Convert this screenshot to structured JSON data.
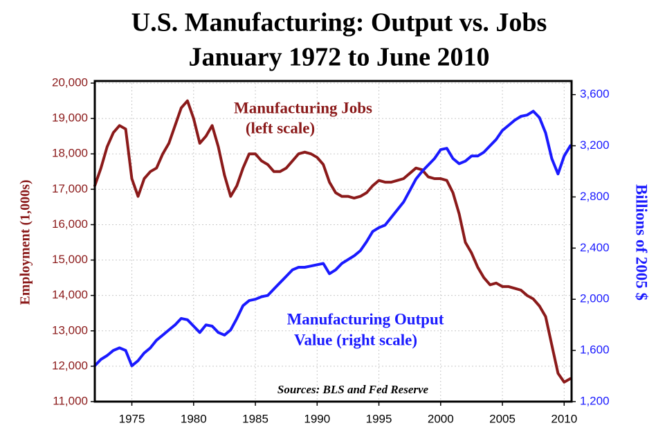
{
  "chart_data": {
    "type": "line",
    "title": "U.S. Manufacturing: Output vs. Jobs",
    "subtitle": "January 1972 to June 2010",
    "y_label": "Employment (1,000s)",
    "y2_label": "Billions of 2005 $",
    "annotations": [
      "Manufacturing Jobs",
      "(left scale)",
      "Manufacturing Output",
      "Value (right scale)",
      "Sources: BLS and Fed Reserve"
    ],
    "grid": true,
    "xlim": [
      1972,
      2010.6
    ],
    "xticks": [
      1975,
      1980,
      1985,
      1990,
      1995,
      2000,
      2005,
      2010
    ],
    "ylim": [
      11000,
      20000
    ],
    "yticks": [
      {
        "value": 11000,
        "label": "11,000"
      },
      {
        "value": 12000,
        "label": "12,000"
      },
      {
        "value": 13000,
        "label": "13,000"
      },
      {
        "value": 14000,
        "label": "14,000"
      },
      {
        "value": 15000,
        "label": "15,000"
      },
      {
        "value": 16000,
        "label": "16,000"
      },
      {
        "value": 17000,
        "label": "17,000"
      },
      {
        "value": 18000,
        "label": "18,000"
      },
      {
        "value": 19000,
        "label": "19,000"
      },
      {
        "value": 20000,
        "label": "20,000"
      }
    ],
    "y2lim": [
      1200,
      3690
    ],
    "y2ticks": [
      {
        "value": 1200,
        "label": "1,200"
      },
      {
        "value": 1600,
        "label": "1,600"
      },
      {
        "value": 2000,
        "label": "2,000"
      },
      {
        "value": 2400,
        "label": "2,400"
      },
      {
        "value": 2800,
        "label": "2,800"
      },
      {
        "value": 3200,
        "label": "3,200"
      },
      {
        "value": 3600,
        "label": "3,600"
      }
    ],
    "x": [
      1972.0,
      1972.5,
      1973.0,
      1973.5,
      1974.0,
      1974.5,
      1975.0,
      1975.5,
      1976.0,
      1976.5,
      1977.0,
      1977.5,
      1978.0,
      1978.5,
      1979.0,
      1979.5,
      1980.0,
      1980.5,
      1981.0,
      1981.5,
      1982.0,
      1982.5,
      1983.0,
      1983.5,
      1984.0,
      1984.5,
      1985.0,
      1985.5,
      1986.0,
      1986.5,
      1987.0,
      1987.5,
      1988.0,
      1988.5,
      1989.0,
      1989.5,
      1990.0,
      1990.5,
      1991.0,
      1991.5,
      1992.0,
      1992.5,
      1993.0,
      1993.5,
      1994.0,
      1994.5,
      1995.0,
      1995.5,
      1996.0,
      1996.5,
      1997.0,
      1997.5,
      1998.0,
      1998.5,
      1999.0,
      1999.5,
      2000.0,
      2000.5,
      2001.0,
      2001.5,
      2002.0,
      2002.5,
      2003.0,
      2003.5,
      2004.0,
      2004.5,
      2005.0,
      2005.5,
      2006.0,
      2006.5,
      2007.0,
      2007.5,
      2008.0,
      2008.5,
      2009.0,
      2009.5,
      2010.0,
      2010.5
    ],
    "series": [
      {
        "name": "Manufacturing Jobs",
        "color": "#8b1a1a",
        "axis": "y",
        "values": [
          17100,
          17600,
          18200,
          18600,
          18800,
          18700,
          17300,
          16800,
          17300,
          17500,
          17600,
          18000,
          18300,
          18800,
          19300,
          19500,
          19000,
          18300,
          18500,
          18800,
          18200,
          17400,
          16800,
          17100,
          17600,
          18000,
          18000,
          17800,
          17700,
          17500,
          17500,
          17600,
          17800,
          18000,
          18050,
          18000,
          17900,
          17700,
          17200,
          16900,
          16800,
          16800,
          16750,
          16800,
          16900,
          17100,
          17250,
          17200,
          17200,
          17250,
          17300,
          17450,
          17600,
          17550,
          17350,
          17300,
          17300,
          17250,
          16900,
          16300,
          15500,
          15200,
          14800,
          14500,
          14300,
          14350,
          14250,
          14250,
          14200,
          14150,
          14000,
          13900,
          13700,
          13400,
          12600,
          11800,
          11550,
          11650
        ]
      },
      {
        "name": "Manufacturing Output Value",
        "color": "#1a1aff",
        "axis": "y2",
        "values": [
          1480,
          1530,
          1560,
          1600,
          1620,
          1600,
          1480,
          1520,
          1580,
          1620,
          1680,
          1720,
          1760,
          1800,
          1850,
          1840,
          1790,
          1740,
          1800,
          1790,
          1740,
          1720,
          1760,
          1850,
          1950,
          1990,
          2000,
          2020,
          2030,
          2080,
          2130,
          2180,
          2230,
          2250,
          2250,
          2260,
          2270,
          2280,
          2200,
          2230,
          2280,
          2310,
          2340,
          2380,
          2450,
          2530,
          2560,
          2580,
          2640,
          2700,
          2760,
          2850,
          2940,
          3000,
          3050,
          3100,
          3170,
          3180,
          3100,
          3060,
          3080,
          3120,
          3120,
          3150,
          3200,
          3250,
          3320,
          3360,
          3400,
          3430,
          3440,
          3470,
          3420,
          3300,
          3100,
          2980,
          3120,
          3200
        ]
      }
    ]
  }
}
